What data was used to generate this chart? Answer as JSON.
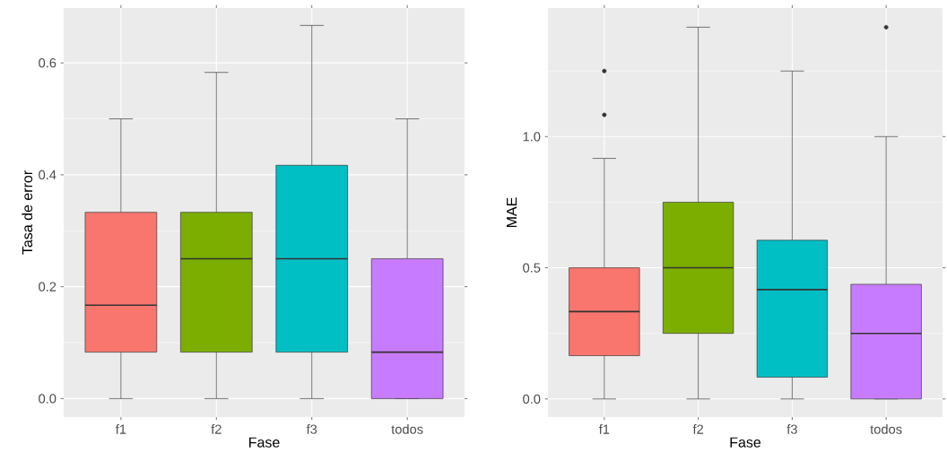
{
  "chart_data": [
    {
      "type": "box",
      "xlabel": "Fase",
      "ylabel": "Tasa de error",
      "categories": [
        "f1",
        "f2",
        "f3",
        "todos"
      ],
      "colors": [
        "#f8766d",
        "#7cae00",
        "#00bfc4",
        "#c77cff"
      ],
      "boxes": [
        {
          "low": 0,
          "q1": 0.083,
          "median": 0.167,
          "q3": 0.333,
          "high": 0.5
        },
        {
          "low": 0,
          "q1": 0.083,
          "median": 0.25,
          "q3": 0.333,
          "high": 0.583
        },
        {
          "low": 0,
          "q1": 0.083,
          "median": 0.25,
          "q3": 0.417,
          "high": 0.667
        },
        {
          "low": 0,
          "q1": 0,
          "median": 0.083,
          "q3": 0.25,
          "high": 0.5
        }
      ],
      "ylim": [
        -0.033,
        0.698
      ],
      "yticks": [
        {
          "value": 0,
          "label": "0.0"
        },
        {
          "value": 0.2,
          "label": "0.2"
        },
        {
          "value": 0.4,
          "label": "0.4"
        },
        {
          "value": 0.6,
          "label": "0.6"
        }
      ],
      "grid": true
    },
    {
      "type": "box",
      "xlabel": "Fase",
      "ylabel": "MAE",
      "categories": [
        "f1",
        "f2",
        "f3",
        "todos"
      ],
      "colors": [
        "#f8766d",
        "#7cae00",
        "#00bfc4",
        "#c77cff"
      ],
      "boxes": [
        {
          "low": 0,
          "q1": 0.165,
          "median": 0.333,
          "q3": 0.5,
          "high": 0.917,
          "outliers": [
            1.083,
            1.25
          ]
        },
        {
          "low": 0,
          "q1": 0.25,
          "median": 0.5,
          "q3": 0.75,
          "high": 1.417
        },
        {
          "low": 0,
          "q1": 0.083,
          "median": 0.417,
          "q3": 0.605,
          "high": 1.25
        },
        {
          "low": 0,
          "q1": 0,
          "median": 0.25,
          "q3": 0.437,
          "high": 1.0,
          "outliers": [
            1.417
          ]
        }
      ],
      "ylim": [
        -0.069,
        1.49
      ],
      "yticks": [
        {
          "value": 0,
          "label": "0.0"
        },
        {
          "value": 0.5,
          "label": "0.5"
        },
        {
          "value": 1.0,
          "label": "1.0"
        }
      ],
      "grid": true
    }
  ]
}
